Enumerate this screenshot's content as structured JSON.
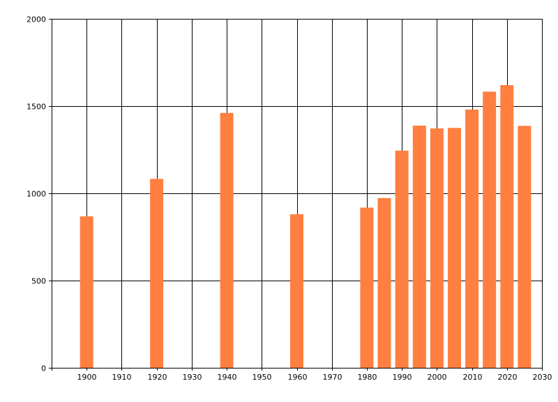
{
  "chart_data": {
    "type": "bar",
    "title": "",
    "xlabel": "",
    "ylabel": "",
    "xlim": [
      1890,
      2030
    ],
    "ylim": [
      0,
      2000
    ],
    "xticks": [
      1900,
      1910,
      1920,
      1930,
      1940,
      1950,
      1960,
      1970,
      1980,
      1990,
      2000,
      2010,
      2020,
      2030
    ],
    "yticks": [
      0,
      500,
      1000,
      1500,
      2000
    ],
    "grid": true,
    "legend": "none",
    "bar_color": "#ff7f40",
    "x": [
      1900,
      1920,
      1940,
      1960,
      1980,
      1985,
      1990,
      1995,
      2000,
      2005,
      2010,
      2015,
      2020,
      2025
    ],
    "values": [
      868,
      1083,
      1461,
      880,
      918,
      973,
      1245,
      1388,
      1372,
      1375,
      1480,
      1583,
      1620,
      1387
    ]
  }
}
